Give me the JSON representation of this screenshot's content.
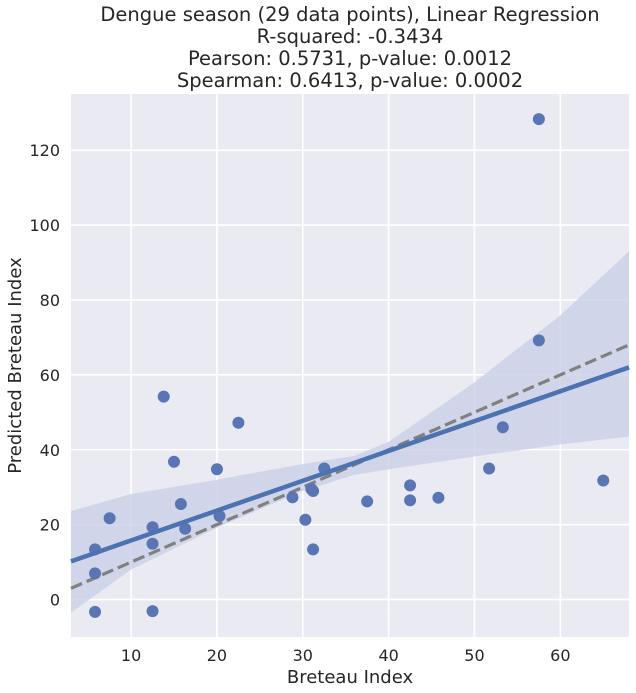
{
  "chart_data": {
    "type": "scatter",
    "title_lines": [
      "Dengue season (29 data points), Linear Regression",
      "R-squared: -0.3434",
      "Pearson: 0.5731, p-value: 0.0012",
      "Spearman: 0.6413, p-value: 0.0002"
    ],
    "xlabel": "Breteau Index",
    "ylabel": "Predicted Breteau Index",
    "xlim": [
      3,
      68
    ],
    "ylim": [
      -10,
      135
    ],
    "x_ticks": [
      10,
      20,
      30,
      40,
      50,
      60
    ],
    "y_ticks": [
      0,
      20,
      40,
      60,
      80,
      100,
      120
    ],
    "grid": true,
    "colors": {
      "points": "#5975b4",
      "regression_line": "#4c72b0",
      "confidence_band": "#c9d0e6",
      "identity_line": "#808080",
      "plot_background": "#eaeaf2",
      "grid": "#ffffff"
    },
    "points": [
      {
        "x": 57.5,
        "y": 128.3
      },
      {
        "x": 57.5,
        "y": 69.2
      },
      {
        "x": 13.8,
        "y": 54.2
      },
      {
        "x": 22.5,
        "y": 47.2
      },
      {
        "x": 53.3,
        "y": 46.0
      },
      {
        "x": 15.0,
        "y": 36.8
      },
      {
        "x": 20.0,
        "y": 34.8
      },
      {
        "x": 32.5,
        "y": 35.0
      },
      {
        "x": 51.7,
        "y": 35.0
      },
      {
        "x": 65.0,
        "y": 31.8
      },
      {
        "x": 42.5,
        "y": 30.5
      },
      {
        "x": 31.0,
        "y": 29.5
      },
      {
        "x": 31.2,
        "y": 29.0
      },
      {
        "x": 28.8,
        "y": 27.3
      },
      {
        "x": 45.8,
        "y": 27.2
      },
      {
        "x": 37.5,
        "y": 26.2
      },
      {
        "x": 42.5,
        "y": 26.5
      },
      {
        "x": 15.8,
        "y": 25.5
      },
      {
        "x": 20.3,
        "y": 22.3
      },
      {
        "x": 7.5,
        "y": 21.7
      },
      {
        "x": 30.3,
        "y": 21.3
      },
      {
        "x": 12.5,
        "y": 19.3
      },
      {
        "x": 16.3,
        "y": 18.9
      },
      {
        "x": 12.5,
        "y": 14.9
      },
      {
        "x": 5.8,
        "y": 13.4
      },
      {
        "x": 31.2,
        "y": 13.4
      },
      {
        "x": 5.8,
        "y": 7.0
      },
      {
        "x": 5.8,
        "y": -3.3
      },
      {
        "x": 12.5,
        "y": -3.1
      }
    ],
    "regression_line": {
      "x": [
        3,
        68
      ],
      "y": [
        10.2,
        62.0
      ]
    },
    "confidence_band": {
      "x": [
        3,
        10,
        20,
        30,
        36,
        40,
        50,
        60,
        68
      ],
      "upper": [
        23.6,
        28.2,
        32.0,
        36.2,
        38.4,
        42.1,
        58.0,
        75.9,
        93.0
      ],
      "lower": [
        -3.5,
        8.0,
        19.2,
        29.0,
        33.3,
        34.8,
        38.2,
        41.4,
        43.5
      ]
    },
    "identity_line": {
      "x": [
        3,
        68
      ],
      "y": [
        3,
        68
      ]
    }
  }
}
